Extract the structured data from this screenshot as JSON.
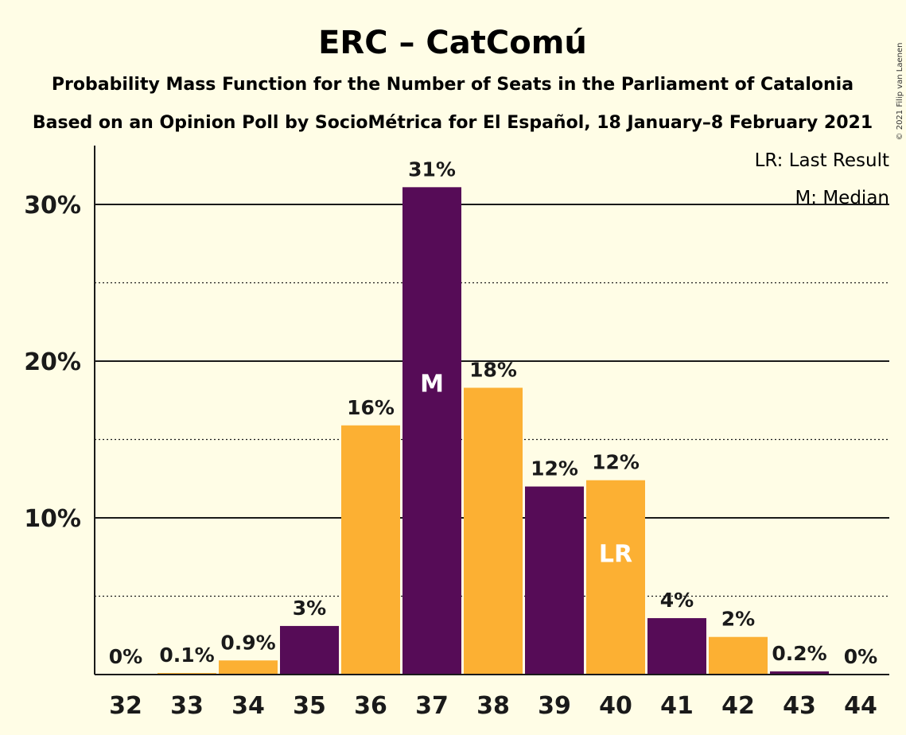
{
  "colors": {
    "background": "#fffde6",
    "erc": "#560c57",
    "catcomu": "#fcb033",
    "text": "#1a1a1a"
  },
  "chart_data": {
    "type": "bar",
    "title": "ERC – CatComú",
    "subtitle": "Probability Mass Function for the Number of Seats in the Parliament of Catalonia",
    "subtitle2": "Based on an Opinion Poll by SocioMétrica for El Español, 18 January–8 February 2021",
    "copyright": "© 2021 Filip van Laenen",
    "legend": [
      "LR: Last Result",
      "M: Median"
    ],
    "legend_position": "top-right",
    "categories": [
      "32",
      "33",
      "34",
      "35",
      "36",
      "37",
      "38",
      "39",
      "40",
      "41",
      "42",
      "43",
      "44"
    ],
    "values": [
      0,
      0.1,
      0.9,
      3.1,
      15.9,
      31.1,
      18.3,
      12.0,
      12.4,
      3.6,
      2.4,
      0.2,
      0
    ],
    "value_labels": [
      "0%",
      "0.1%",
      "0.9%",
      "3%",
      "16%",
      "31%",
      "18%",
      "12%",
      "12%",
      "4%",
      "2%",
      "0.2%",
      "0%"
    ],
    "bar_colors": [
      "#fcb033",
      "#fcb033",
      "#fcb033",
      "#560c57",
      "#fcb033",
      "#560c57",
      "#fcb033",
      "#560c57",
      "#fcb033",
      "#560c57",
      "#fcb033",
      "#560c57",
      "#fcb033"
    ],
    "marks": {
      "37": "M",
      "40": "LR"
    },
    "yticks": [
      10,
      20,
      30
    ],
    "ytick_labels": [
      "10%",
      "20%",
      "30%"
    ],
    "minor_gridlines": [
      5,
      15,
      25
    ],
    "ylim": [
      0,
      33.6
    ]
  }
}
